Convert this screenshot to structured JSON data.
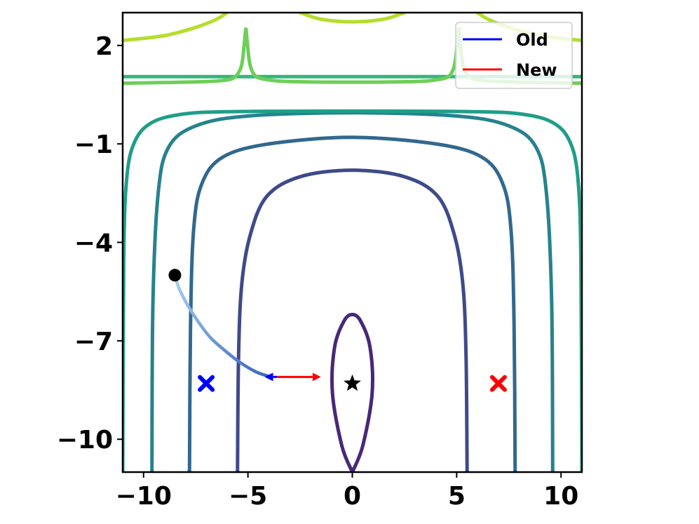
{
  "chart_data": {
    "type": "line",
    "title": "",
    "xlabel": "",
    "ylabel": "",
    "xlim": [
      -11,
      11
    ],
    "ylim": [
      -11,
      3
    ],
    "grid": false,
    "legend_position": "top-right",
    "x_ticks": [
      -10,
      -5,
      0,
      5,
      10
    ],
    "y_ticks": [
      2,
      -1,
      -4,
      -7,
      -10
    ],
    "x_tick_labels": [
      "−10",
      "−5",
      "0",
      "5",
      "10"
    ],
    "y_tick_labels": [
      "2",
      "−1",
      "−4",
      "−7",
      "−10"
    ],
    "contours": [
      {
        "color": "#482878",
        "points": [
          [
            0,
            -11
          ],
          [
            -0.5,
            -10.2
          ],
          [
            -0.95,
            -8.6
          ],
          [
            -0.85,
            -7.2
          ],
          [
            -0.4,
            -6.4
          ],
          [
            0,
            -6.2
          ],
          [
            0.4,
            -6.4
          ],
          [
            0.85,
            -7.2
          ],
          [
            0.95,
            -8.6
          ],
          [
            0.5,
            -10.2
          ],
          [
            0,
            -11
          ]
        ]
      },
      {
        "color": "#3e4a89",
        "points": [
          [
            -5.5,
            -11
          ],
          [
            -5.45,
            -7.5
          ],
          [
            -5.3,
            -5.3
          ],
          [
            -4.9,
            -3.8
          ],
          [
            -4.1,
            -2.6
          ],
          [
            -2.5,
            -2.0
          ],
          [
            0,
            -1.8
          ],
          [
            2.5,
            -2.0
          ],
          [
            4.1,
            -2.6
          ],
          [
            4.9,
            -3.8
          ],
          [
            5.3,
            -5.3
          ],
          [
            5.45,
            -7.5
          ],
          [
            5.5,
            -11
          ]
        ]
      },
      {
        "color": "#31688e",
        "points": [
          [
            -7.8,
            -11
          ],
          [
            -7.75,
            -6.5
          ],
          [
            -7.6,
            -3.6
          ],
          [
            -7.2,
            -2.2
          ],
          [
            -6.2,
            -1.4
          ],
          [
            -4,
            -1.0
          ],
          [
            0,
            -0.8
          ],
          [
            4,
            -1.0
          ],
          [
            6.2,
            -1.4
          ],
          [
            7.2,
            -2.2
          ],
          [
            7.6,
            -3.6
          ],
          [
            7.75,
            -6.5
          ],
          [
            7.8,
            -11
          ]
        ]
      },
      {
        "color": "#26828e",
        "points": [
          [
            -9.6,
            -11
          ],
          [
            -9.55,
            -5.8
          ],
          [
            -9.3,
            -2.5
          ],
          [
            -8.8,
            -1.1
          ],
          [
            -7.5,
            -0.45
          ],
          [
            -5,
            -0.15
          ],
          [
            0,
            -0.05
          ],
          [
            5,
            -0.15
          ],
          [
            7.5,
            -0.45
          ],
          [
            8.8,
            -1.1
          ],
          [
            9.3,
            -2.5
          ],
          [
            9.55,
            -5.8
          ],
          [
            9.6,
            -11
          ]
        ]
      },
      {
        "color": "#1f9e89",
        "points": [
          [
            -11,
            -11
          ],
          [
            -10.95,
            -4.5
          ],
          [
            -10.8,
            -2.0
          ],
          [
            -10.4,
            -0.9
          ],
          [
            -9.6,
            -0.35
          ],
          [
            -8.2,
            -0.1
          ],
          [
            -6,
            -0.02
          ],
          [
            0,
            0
          ],
          [
            6,
            -0.02
          ],
          [
            8.2,
            -0.1
          ],
          [
            9.6,
            -0.35
          ],
          [
            10.4,
            -0.9
          ],
          [
            10.8,
            -2.0
          ],
          [
            10.95,
            -4.5
          ],
          [
            11,
            -11
          ]
        ]
      },
      {
        "color": "#35b779",
        "points": [
          [
            -11,
            1.05
          ],
          [
            11,
            1.05
          ]
        ]
      },
      {
        "color": "#6ece58",
        "points": [
          [
            -11,
            0.85
          ],
          [
            -9,
            0.87
          ],
          [
            -7,
            0.9
          ],
          [
            -6,
            0.95
          ],
          [
            -5.6,
            1.05
          ],
          [
            -5.35,
            1.3
          ],
          [
            -5.25,
            1.6
          ],
          [
            -5.2,
            1.9
          ],
          [
            -5.15,
            2.2
          ],
          [
            -5.1,
            2.5
          ],
          [
            -5.05,
            2.2
          ],
          [
            -5.0,
            1.9
          ],
          [
            -4.95,
            1.6
          ],
          [
            -4.85,
            1.3
          ],
          [
            -4.6,
            1.05
          ],
          [
            -4.0,
            0.95
          ],
          [
            -3,
            0.9
          ],
          [
            0,
            0.88
          ],
          [
            3,
            0.9
          ],
          [
            4.0,
            0.95
          ],
          [
            4.6,
            1.05
          ],
          [
            4.85,
            1.3
          ],
          [
            4.95,
            1.6
          ],
          [
            5.0,
            1.9
          ],
          [
            5.05,
            2.2
          ],
          [
            5.1,
            2.5
          ],
          [
            5.15,
            2.2
          ],
          [
            5.2,
            1.9
          ],
          [
            5.25,
            1.6
          ],
          [
            5.35,
            1.3
          ],
          [
            5.6,
            1.05
          ],
          [
            6,
            0.95
          ],
          [
            7,
            0.9
          ],
          [
            9,
            0.87
          ],
          [
            11,
            0.85
          ]
        ]
      },
      {
        "color": "#b5de2b",
        "points": [
          [
            -11,
            2.15
          ],
          [
            -9,
            2.3
          ],
          [
            -7.5,
            2.55
          ],
          [
            -6.5,
            2.8
          ],
          [
            -6,
            3.0
          ]
        ]
      },
      {
        "color": "#b5de2b",
        "points": [
          [
            -2.5,
            3.0
          ],
          [
            -1.5,
            2.8
          ],
          [
            0,
            2.72
          ],
          [
            1.5,
            2.8
          ],
          [
            2.5,
            3.0
          ]
        ]
      },
      {
        "color": "#b5de2b",
        "points": [
          [
            6,
            3.0
          ],
          [
            6.5,
            2.8
          ],
          [
            7.5,
            2.55
          ],
          [
            9,
            2.3
          ],
          [
            11,
            2.15
          ]
        ]
      }
    ],
    "series": [
      {
        "name": "Old",
        "color": "#0000ff",
        "arrow": {
          "from": [
            -3.6,
            -8.1
          ],
          "to": [
            -4.2,
            -8.1
          ]
        }
      },
      {
        "name": "New",
        "color": "#ff0000",
        "arrow": {
          "from": [
            -3.6,
            -8.1
          ],
          "to": [
            -1.5,
            -8.1
          ]
        }
      }
    ],
    "trajectory": {
      "color_start": "#a8d0f5",
      "color_end": "#3a66b8",
      "points": [
        [
          -8.5,
          -5.0
        ],
        [
          -8.3,
          -5.4
        ],
        [
          -7.9,
          -5.9
        ],
        [
          -7.4,
          -6.4
        ],
        [
          -6.8,
          -6.9
        ],
        [
          -6.1,
          -7.3
        ],
        [
          -5.4,
          -7.65
        ],
        [
          -4.6,
          -7.95
        ],
        [
          -3.9,
          -8.1
        ]
      ]
    },
    "markers": [
      {
        "name": "start-point",
        "type": "dot",
        "x": -8.5,
        "y": -5.0,
        "color": "#000000"
      },
      {
        "name": "optimum-star",
        "type": "star",
        "x": 0,
        "y": -8.3,
        "color": "#000000"
      },
      {
        "name": "old-x-marker",
        "type": "x",
        "x": -7.0,
        "y": -8.3,
        "color": "#0000ff"
      },
      {
        "name": "new-x-marker",
        "type": "x",
        "x": 7.0,
        "y": -8.3,
        "color": "#ff0000"
      }
    ],
    "legend": [
      {
        "label": "Old",
        "color": "#0000ff"
      },
      {
        "label": "New",
        "color": "#ff0000"
      }
    ]
  }
}
